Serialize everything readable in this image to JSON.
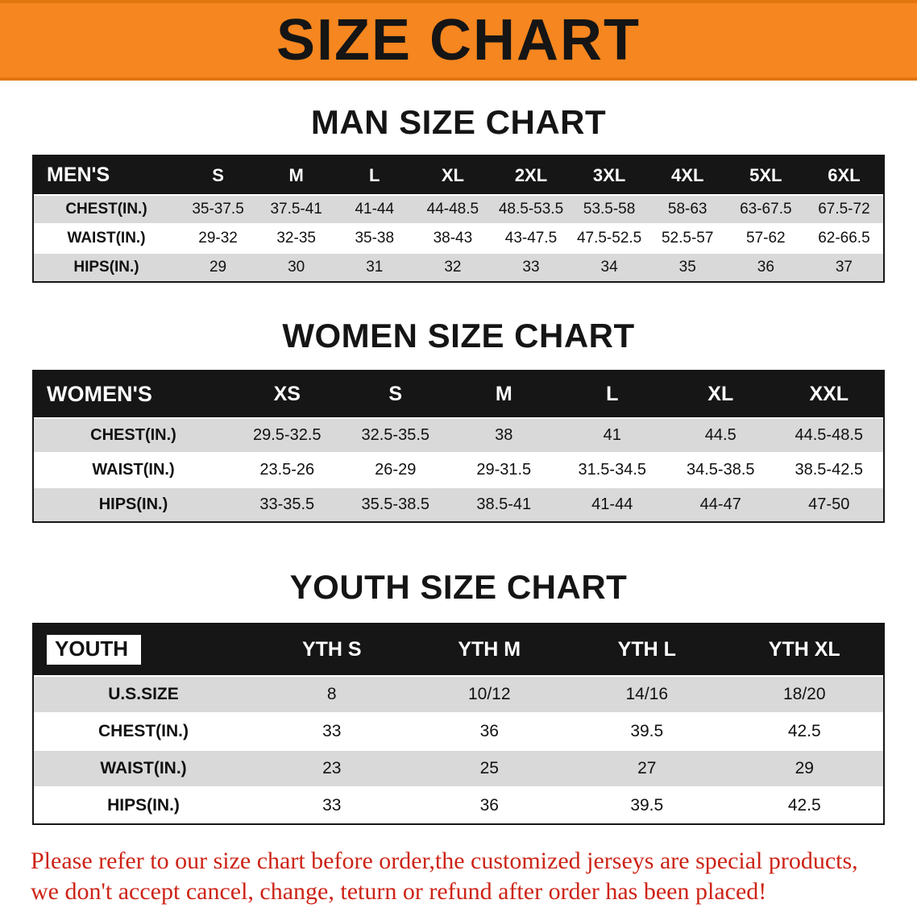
{
  "banner": {
    "title": "SIZE CHART"
  },
  "colors": {
    "banner_bg": "#f6861f",
    "table_header_bg": "#161616",
    "row_alt_bg": "#d9d9d9",
    "disclaimer_text": "#cd2316"
  },
  "sections": [
    {
      "heading": "MAN SIZE CHART",
      "table": {
        "title": "MEN'S",
        "sizes": [
          "S",
          "M",
          "L",
          "XL",
          "2XL",
          "3XL",
          "4XL",
          "5XL",
          "6XL"
        ],
        "rows": [
          {
            "label": "CHEST(IN.)",
            "values": [
              "35-37.5",
              "37.5-41",
              "41-44",
              "44-48.5",
              "48.5-53.5",
              "53.5-58",
              "58-63",
              "63-67.5",
              "67.5-72"
            ]
          },
          {
            "label": "WAIST(IN.)",
            "values": [
              "29-32",
              "32-35",
              "35-38",
              "38-43",
              "43-47.5",
              "47.5-52.5",
              "52.5-57",
              "57-62",
              "62-66.5"
            ]
          },
          {
            "label": "HIPS(IN.)",
            "values": [
              "29",
              "30",
              "31",
              "32",
              "33",
              "34",
              "35",
              "36",
              "37"
            ]
          }
        ]
      }
    },
    {
      "heading": "WOMEN SIZE CHART",
      "table": {
        "title": "WOMEN'S",
        "sizes": [
          "XS",
          "S",
          "M",
          "L",
          "XL",
          "XXL"
        ],
        "rows": [
          {
            "label": "CHEST(IN.)",
            "values": [
              "29.5-32.5",
              "32.5-35.5",
              "38",
              "41",
              "44.5",
              "44.5-48.5"
            ]
          },
          {
            "label": "WAIST(IN.)",
            "values": [
              "23.5-26",
              "26-29",
              "29-31.5",
              "31.5-34.5",
              "34.5-38.5",
              "38.5-42.5"
            ]
          },
          {
            "label": "HIPS(IN.)",
            "values": [
              "33-35.5",
              "35.5-38.5",
              "38.5-41",
              "41-44",
              "44-47",
              "47-50"
            ]
          }
        ]
      }
    },
    {
      "heading": "YOUTH SIZE CHART",
      "table": {
        "title": "YOUTH",
        "sizes": [
          "YTH S",
          "YTH M",
          "YTH L",
          "YTH XL"
        ],
        "rows": [
          {
            "label": "U.S.SIZE",
            "values": [
              "8",
              "10/12",
              "14/16",
              "18/20"
            ]
          },
          {
            "label": "CHEST(IN.)",
            "values": [
              "33",
              "36",
              "39.5",
              "42.5"
            ]
          },
          {
            "label": "WAIST(IN.)",
            "values": [
              "23",
              "25",
              "27",
              "29"
            ]
          },
          {
            "label": "HIPS(IN.)",
            "values": [
              "33",
              "36",
              "39.5",
              "42.5"
            ]
          }
        ]
      }
    }
  ],
  "disclaimer": {
    "line1": "Please refer to our size chart before order,the customized jerseys are special products,",
    "line2": "we don't accept cancel, change, teturn or refund after order has been placed!"
  }
}
